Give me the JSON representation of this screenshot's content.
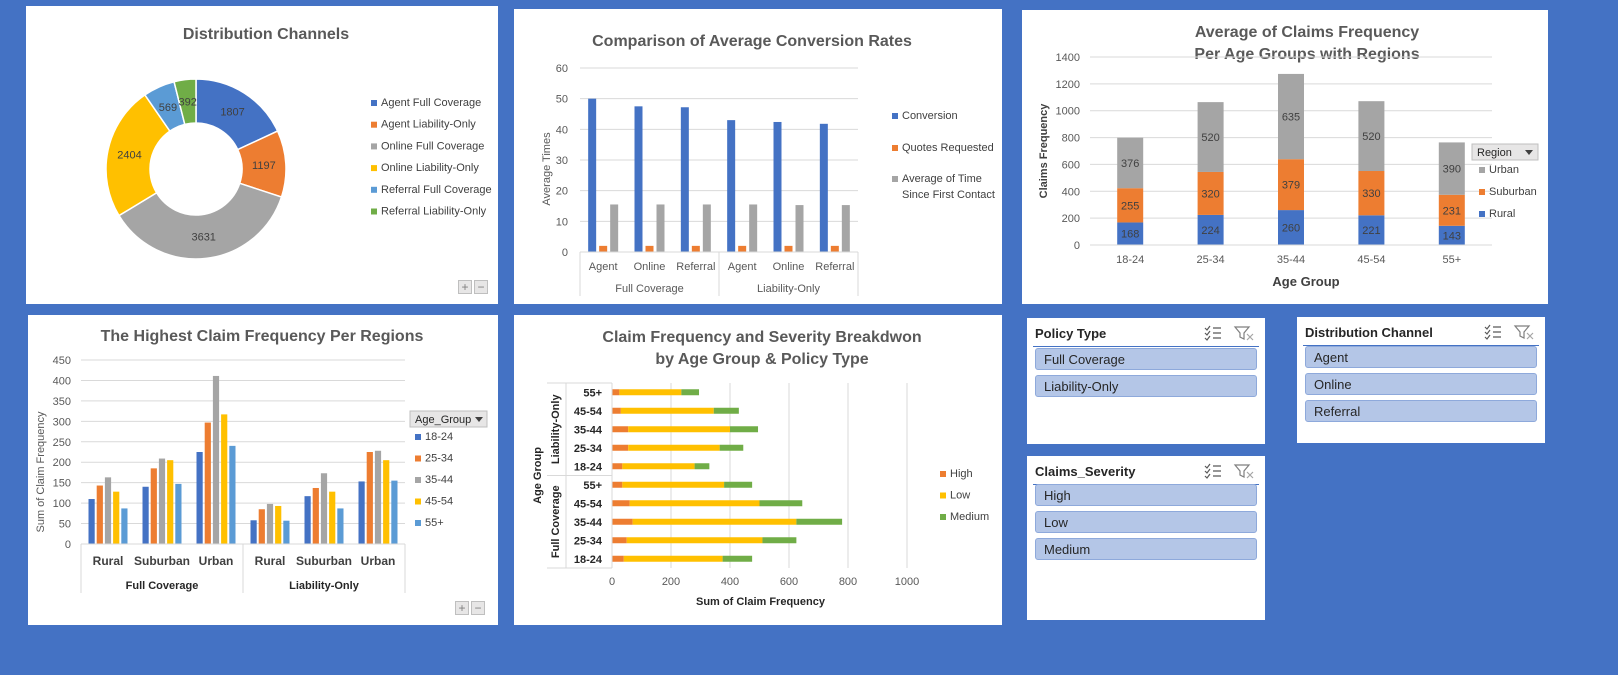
{
  "donut": {
    "title": "Distribution Channels",
    "legend_colors": [
      "#4472C4",
      "#ED7D31",
      "#A5A5A5",
      "#FFC000",
      "#5B9BD5",
      "#70AD47"
    ]
  },
  "conv": {
    "title": "Comparison of Average Conversion Rates",
    "ylabel": "Average Times",
    "group_labels": [
      "Full Coverage",
      "Liability-Only"
    ],
    "legend": [
      "Conversion",
      "Quotes Requested",
      "Average of Time",
      "Since First Contact"
    ]
  },
  "stack": {
    "title_line1": "Average of Claims Frequency",
    "title_line2": "Per Age Groups with Regions",
    "filter_label": "Region"
  },
  "regions": {
    "title": "The Highest Claim Frequency Per Regions",
    "filter_label": "Age_Group",
    "group_labels": [
      "Full Coverage",
      "Liability-Only"
    ]
  },
  "severity": {
    "title_line1": "Claim Frequency and Severity Breakdwon",
    "title_line2": "by Age Group & Policy Type",
    "group_labels": [
      "Liability-Only",
      "Full Coverage"
    ]
  },
  "slicers": {
    "policy": {
      "title": "Policy Type",
      "items": [
        "Full Coverage",
        "Liability-Only"
      ]
    },
    "channel": {
      "title": "Distribution Channel",
      "items": [
        "Agent",
        "Online",
        "Referral"
      ]
    },
    "severity": {
      "title": "Claims_Severity",
      "items": [
        "High",
        "Low",
        "Medium"
      ]
    }
  },
  "chart_data": [
    {
      "type": "pie",
      "variant": "donut",
      "title": "Distribution Channels",
      "categories": [
        "Agent Full Coverage",
        "Agent Liability-Only",
        "Online Full Coverage",
        "Online Liability-Only",
        "Referral Full Coverage",
        "Referral Liability-Only"
      ],
      "values": [
        1807,
        1197,
        3631,
        2404,
        569,
        392
      ],
      "legend": "right"
    },
    {
      "type": "bar",
      "title": "Comparison of Average Conversion Rates",
      "ylabel": "Average Times",
      "categories": [
        "Agent",
        "Online",
        "Referral",
        "Agent",
        "Online",
        "Referral"
      ],
      "category_groups": [
        "Full Coverage",
        "Full Coverage",
        "Full Coverage",
        "Liability-Only",
        "Liability-Only",
        "Liability-Only"
      ],
      "series": [
        {
          "name": "Conversion",
          "values": [
            50,
            47.5,
            47.2,
            43,
            42.4,
            41.8
          ]
        },
        {
          "name": "Quotes Requested",
          "values": [
            2,
            2,
            2,
            2,
            2,
            2
          ]
        },
        {
          "name": "Average of Time Since First Contact",
          "values": [
            15.5,
            15.5,
            15.5,
            15.5,
            15.3,
            15.3
          ]
        }
      ],
      "ylim": [
        0,
        60
      ],
      "yticks": [
        0,
        10,
        20,
        30,
        40,
        50,
        60
      ],
      "legend": "right"
    },
    {
      "type": "bar",
      "stacked": true,
      "title": "Average of Claims Frequency Per Age Groups with Regions",
      "xlabel": "Age Group",
      "ylabel": "Claims Frequency",
      "categories": [
        "18-24",
        "25-34",
        "35-44",
        "45-54",
        "55+"
      ],
      "series": [
        {
          "name": "Rural",
          "values": [
            168,
            224,
            260,
            221,
            143
          ]
        },
        {
          "name": "Suburban",
          "values": [
            255,
            320,
            379,
            330,
            231
          ]
        },
        {
          "name": "Urban",
          "values": [
            376,
            520,
            635,
            520,
            390
          ]
        }
      ],
      "ylim": [
        0,
        1400
      ],
      "yticks": [
        0,
        200,
        400,
        600,
        800,
        1000,
        1200,
        1400
      ],
      "legend": "right"
    },
    {
      "type": "bar",
      "title": "The Highest Claim Frequency Per Regions",
      "ylabel": "Sum of Claim Frequency",
      "categories": [
        "Rural",
        "Suburban",
        "Urban",
        "Rural",
        "Suburban",
        "Urban"
      ],
      "category_groups": [
        "Full Coverage",
        "Full Coverage",
        "Full Coverage",
        "Liability-Only",
        "Liability-Only",
        "Liability-Only"
      ],
      "series": [
        {
          "name": "18-24",
          "values": [
            110,
            140,
            225,
            58,
            117,
            153
          ]
        },
        {
          "name": "25-34",
          "values": [
            143,
            185,
            297,
            85,
            137,
            225
          ]
        },
        {
          "name": "35-44",
          "values": [
            163,
            209,
            411,
            98,
            173,
            228
          ]
        },
        {
          "name": "45-54",
          "values": [
            128,
            205,
            317,
            93,
            128,
            205
          ]
        },
        {
          "name": "55+",
          "values": [
            87,
            147,
            240,
            57,
            87,
            155
          ]
        }
      ],
      "ylim": [
        0,
        450
      ],
      "yticks": [
        0,
        50,
        100,
        150,
        200,
        250,
        300,
        350,
        400,
        450
      ],
      "legend": "right"
    },
    {
      "type": "bar",
      "orientation": "horizontal",
      "stacked": true,
      "title": "Claim Frequency and Severity Breakdwon by Age Group & Policy Type",
      "xlabel": "Sum of Claim Frequency",
      "ylabel": "Age Group",
      "categories": [
        "55+",
        "45-54",
        "35-44",
        "25-34",
        "18-24",
        "55+",
        "45-54",
        "35-44",
        "25-34",
        "18-24"
      ],
      "category_groups": [
        "Liability-Only",
        "Liability-Only",
        "Liability-Only",
        "Liability-Only",
        "Liability-Only",
        "Full Coverage",
        "Full Coverage",
        "Full Coverage",
        "Full Coverage",
        "Full Coverage"
      ],
      "series": [
        {
          "name": "High",
          "values": [
            25,
            30,
            55,
            55,
            35,
            35,
            60,
            70,
            50,
            40
          ]
        },
        {
          "name": "Low",
          "values": [
            210,
            315,
            345,
            310,
            245,
            345,
            440,
            555,
            460,
            335
          ]
        },
        {
          "name": "Medium",
          "values": [
            60,
            85,
            95,
            80,
            50,
            95,
            145,
            155,
            115,
            100
          ]
        }
      ],
      "xlim": [
        0,
        1000
      ],
      "xticks": [
        0,
        200,
        400,
        600,
        800,
        1000
      ],
      "legend": "right"
    }
  ]
}
